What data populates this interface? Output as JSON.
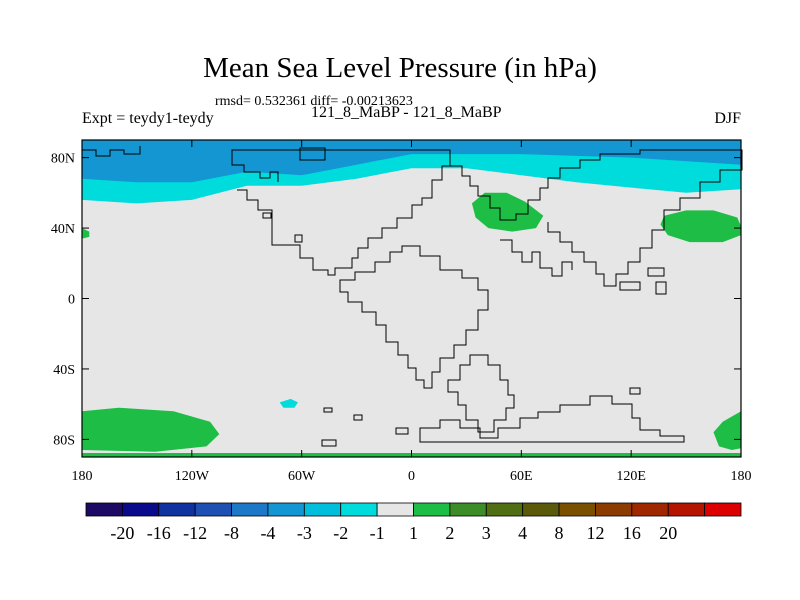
{
  "chart_data": {
    "type": "heatmap",
    "title": "Mean Sea Level Pressure (in hPa)",
    "stats_text": "rmsd= 0.532361 diff= -0.00213623",
    "left_label": "Expt = teydy1-teydy",
    "center_label": "121_8_MaBP - 121_8_MaBP",
    "right_label": "DJF",
    "x_ticks": [
      {
        "value": -180,
        "label": "180"
      },
      {
        "value": -120,
        "label": "120W"
      },
      {
        "value": -60,
        "label": "60W"
      },
      {
        "value": 0,
        "label": "0"
      },
      {
        "value": 60,
        "label": "60E"
      },
      {
        "value": 120,
        "label": "120E"
      },
      {
        "value": 180,
        "label": "180"
      }
    ],
    "y_ticks": [
      {
        "value": 80,
        "label": "80N"
      },
      {
        "value": 40,
        "label": "40N"
      },
      {
        "value": 0,
        "label": "0"
      },
      {
        "value": -40,
        "label": "40S"
      },
      {
        "value": -80,
        "label": "80S"
      }
    ],
    "xlim": [
      -180,
      180
    ],
    "ylim": [
      -90,
      90
    ],
    "background_bin_color": "#e6e6e6",
    "colorbar": {
      "colors": [
        "#1c0a64",
        "#0a0a8c",
        "#0f32a0",
        "#1e50b4",
        "#1e78c8",
        "#1496d2",
        "#00bedc",
        "#00dcdc",
        "#e6e6e6",
        "#1ebe46",
        "#3c8c28",
        "#506e14",
        "#5a5a0a",
        "#785000",
        "#8c3c00",
        "#a02800",
        "#b41400",
        "#dc0000"
      ],
      "levels": [
        "-20",
        "-16",
        "-12",
        "-8",
        "-4",
        "-3",
        "-2",
        "-1",
        "1",
        "2",
        "3",
        "4",
        "8",
        "12",
        "16",
        "20"
      ]
    },
    "regions": [
      {
        "name": "arctic-band-minus-2-to-minus-1",
        "color": "#00dcdc",
        "value_range": [
          -2,
          -1
        ],
        "points": [
          [
            -180,
            90
          ],
          [
            180,
            90
          ],
          [
            180,
            62
          ],
          [
            150,
            60
          ],
          [
            120,
            63
          ],
          [
            90,
            66
          ],
          [
            60,
            70
          ],
          [
            30,
            74
          ],
          [
            0,
            74
          ],
          [
            -30,
            68
          ],
          [
            -60,
            64
          ],
          [
            -90,
            64
          ],
          [
            -120,
            56
          ],
          [
            -150,
            54
          ],
          [
            -180,
            56
          ]
        ]
      },
      {
        "name": "arctic-core-minus-3-to-minus-2",
        "color": "#1496d2",
        "value_range": [
          -3,
          -2
        ],
        "points": [
          [
            -180,
            90
          ],
          [
            180,
            90
          ],
          [
            180,
            76
          ],
          [
            120,
            80
          ],
          [
            60,
            82
          ],
          [
            0,
            82
          ],
          [
            -30,
            76
          ],
          [
            -60,
            70
          ],
          [
            -90,
            72
          ],
          [
            -120,
            66
          ],
          [
            -150,
            66
          ],
          [
            -180,
            68
          ]
        ]
      },
      {
        "name": "asia-high-1-to-2",
        "color": "#1ebe46",
        "value_range": [
          1,
          2
        ],
        "points": [
          [
            33,
            54
          ],
          [
            40,
            60
          ],
          [
            52,
            60
          ],
          [
            62,
            55
          ],
          [
            72,
            47
          ],
          [
            68,
            40
          ],
          [
            55,
            38
          ],
          [
            42,
            40
          ],
          [
            35,
            46
          ]
        ]
      },
      {
        "name": "north-pacific-high-1-to-2",
        "color": "#1ebe46",
        "value_range": [
          1,
          2
        ],
        "points": [
          [
            138,
            47
          ],
          [
            150,
            50
          ],
          [
            165,
            50
          ],
          [
            178,
            46
          ],
          [
            180,
            41
          ],
          [
            180,
            36
          ],
          [
            170,
            32
          ],
          [
            152,
            32
          ],
          [
            140,
            36
          ],
          [
            136,
            42
          ]
        ]
      },
      {
        "name": "atlantic-edge-1-to-2",
        "color": "#1ebe46",
        "value_range": [
          1,
          2
        ],
        "points": [
          [
            -180,
            40
          ],
          [
            -176,
            38
          ],
          [
            -176,
            35
          ],
          [
            -180,
            34
          ]
        ]
      },
      {
        "name": "antarctic-pacific-1-to-2",
        "color": "#1ebe46",
        "value_range": [
          1,
          2
        ],
        "points": [
          [
            -180,
            -64
          ],
          [
            -160,
            -62
          ],
          [
            -130,
            -64
          ],
          [
            -110,
            -70
          ],
          [
            -105,
            -77
          ],
          [
            -112,
            -84
          ],
          [
            -140,
            -87
          ],
          [
            -180,
            -86
          ]
        ]
      },
      {
        "name": "antarctic-east-1-to-2",
        "color": "#1ebe46",
        "value_range": [
          1,
          2
        ],
        "points": [
          [
            180,
            -64
          ],
          [
            170,
            -70
          ],
          [
            165,
            -76
          ],
          [
            168,
            -84
          ],
          [
            175,
            -86
          ],
          [
            180,
            -85
          ]
        ]
      },
      {
        "name": "southern-ocean-minus-2-to-minus-1",
        "color": "#00dcdc",
        "value_range": [
          -2,
          -1
        ],
        "points": [
          [
            -72,
            -59
          ],
          [
            -66,
            -57
          ],
          [
            -62,
            -59
          ],
          [
            -64,
            -62
          ],
          [
            -70,
            -62
          ]
        ]
      }
    ]
  }
}
